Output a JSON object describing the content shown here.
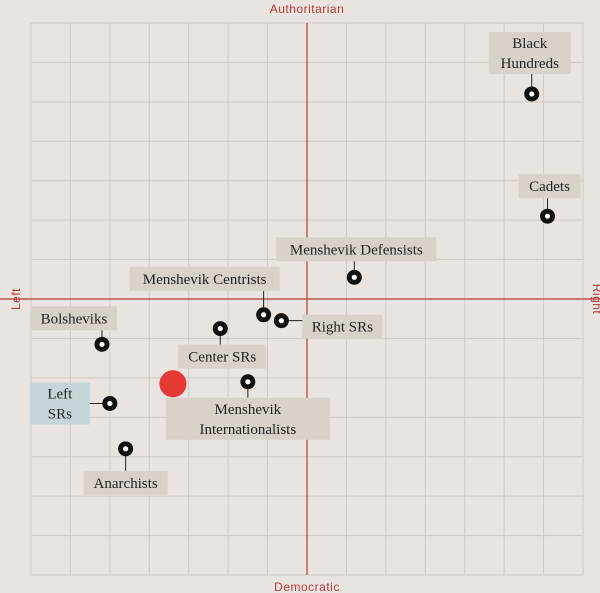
{
  "chart_data": {
    "type": "scatter",
    "title": "",
    "axes": {
      "top": "Authoritarian",
      "bottom": "Democratic",
      "left": "Left",
      "right": "Right"
    },
    "xlim": [
      -7,
      7
    ],
    "ylim": [
      -7,
      7
    ],
    "grid": true,
    "grid_step": 1,
    "colors": {
      "background": "#e9e4df",
      "grid": "#cfcac5",
      "axis": "#b23a3a",
      "label_bg": "#d8d2cb",
      "label_highlight_bg": "#c6d6d8",
      "marker": "#111111",
      "user_marker": "#e53935"
    },
    "points": [
      {
        "label": "Black Hundreds",
        "x": 5.7,
        "y": 5.2
      },
      {
        "label": "Cadets",
        "x": 6.1,
        "y": 2.1
      },
      {
        "label": "Menshevik Defensists",
        "x": 1.2,
        "y": 0.55
      },
      {
        "label": "Menshevik Centrists",
        "x": -1.1,
        "y": -0.4
      },
      {
        "label": "Right SRs",
        "x": -0.65,
        "y": -0.55
      },
      {
        "label": "Bolsheviks",
        "x": -5.2,
        "y": -1.15
      },
      {
        "label": "Center SRs",
        "x": -2.2,
        "y": -0.75
      },
      {
        "label": "Menshevik Internationalists",
        "x": -1.5,
        "y": -2.1
      },
      {
        "label": "Left SRs",
        "x": -5.0,
        "y": -2.65,
        "highlighted": true
      },
      {
        "label": "Anarchists",
        "x": -4.6,
        "y": -3.8
      }
    ],
    "user_point": {
      "x": -3.4,
      "y": -2.15
    }
  }
}
